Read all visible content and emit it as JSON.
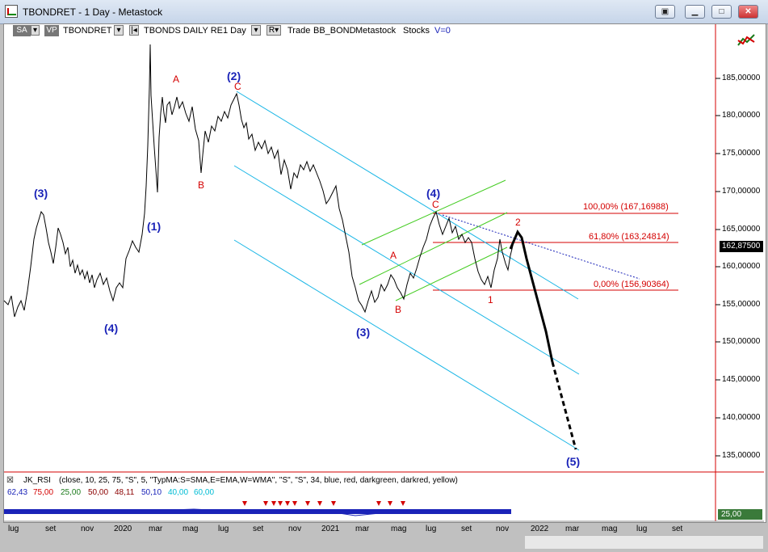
{
  "window": {
    "title": "TBONDRET - 1 Day - Metastock",
    "restore_icon": "restore-icon",
    "minimize_icon": "minimize-icon",
    "maximize_icon": "maximize-icon",
    "close_icon": "close-icon"
  },
  "toolbar": {
    "sa_label": "SA",
    "vp_label": "VP",
    "symbol": "TBONDRET",
    "security_name": "TBONDS DAILY RE",
    "period": "1 Day",
    "r_label": "R",
    "trade_label": "Trade",
    "system_label": "BB_BOND",
    "source_label": "Metastock",
    "type_label": "Stocks",
    "v_label": "V=0"
  },
  "price_axis": {
    "labels": [
      "185,00000",
      "180,00000",
      "175,00000",
      "170,00000",
      "165,00000",
      "160,00000",
      "155,00000",
      "150,00000",
      "145,00000",
      "140,00000",
      "135,00000"
    ],
    "last_price": "162,87500"
  },
  "time_axis": {
    "labels": [
      "lug",
      "set",
      "nov",
      "2020",
      "mar",
      "mag",
      "lug",
      "set",
      "nov",
      "2021",
      "mar",
      "mag",
      "lug",
      "set",
      "nov",
      "2022",
      "mar",
      "mag",
      "lug",
      "set"
    ]
  },
  "waves": {
    "w3_left": "(3)",
    "w4_left": "(4)",
    "w1": "(1)",
    "w2": "(2)",
    "w3": "(3)",
    "w4": "(4)",
    "w5": "(5)"
  },
  "minor_labels": {
    "a1": "A",
    "b1": "B",
    "c1": "C",
    "a2": "A",
    "b2": "B",
    "c2": "C",
    "one": "1",
    "two": "2"
  },
  "fib_levels": [
    {
      "label": "100,00% (167,16988)",
      "price": 167.16988
    },
    {
      "label": "61,80% (163,24814)",
      "price": 163.24814
    },
    {
      "label": "0,00% (156,90364)",
      "price": 156.90364
    }
  ],
  "indicator": {
    "toggle": "☒",
    "name": "JK_RSI",
    "params": "(close, 10, 25, 75, \"S\", 5, \"TypMA:S=SMA,E=EMA,W=WMA\", \"S\", \"S\", 34, blue, red, darkgreen, darkred, yellow)",
    "values": [
      {
        "text": "62,43",
        "color": "#1a23b8"
      },
      {
        "text": "75,00",
        "color": "#d40000"
      },
      {
        "text": "25,00",
        "color": "#1a7a1a"
      },
      {
        "text": "50,00",
        "color": "#8b0000"
      },
      {
        "text": "48,11",
        "color": "#8b0000"
      },
      {
        "text": "50,10",
        "color": "#1a23b8"
      },
      {
        "text": "40,00",
        "color": "#00bcd4"
      },
      {
        "text": "60,00",
        "color": "#00bcd4"
      }
    ],
    "badge": "25,00"
  },
  "colors": {
    "wave_blue": "#1a23b8",
    "label_red": "#d40000",
    "channel_cyan": "#19b6e6",
    "channel_green": "#44cc22",
    "price_black": "#000000"
  }
}
